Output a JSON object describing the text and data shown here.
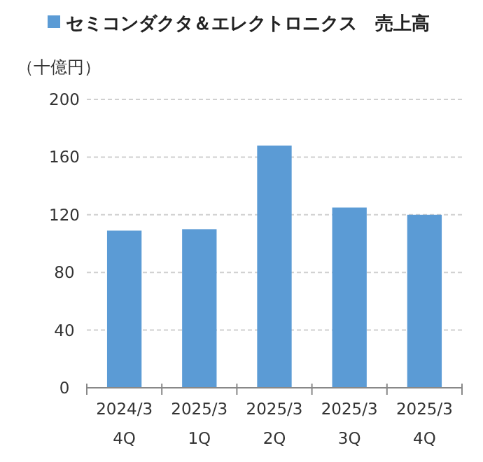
{
  "chart_data": {
    "type": "bar",
    "ylabel": "（十億円）",
    "categories": [
      "2024/3\n4Q",
      "2025/3\n1Q",
      "2025/3\n2Q",
      "2025/3\n3Q",
      "2025/3\n4Q"
    ],
    "series": [
      {
        "name": "セミコンダクタ＆エレクトロニクス　売上高",
        "color": "#5b9bd5",
        "values": [
          109,
          110,
          168,
          125,
          120
        ]
      }
    ],
    "ylim": [
      0,
      200
    ],
    "yticks": [
      0,
      40,
      80,
      120,
      160,
      200
    ],
    "grid": "y",
    "legend": "top"
  }
}
